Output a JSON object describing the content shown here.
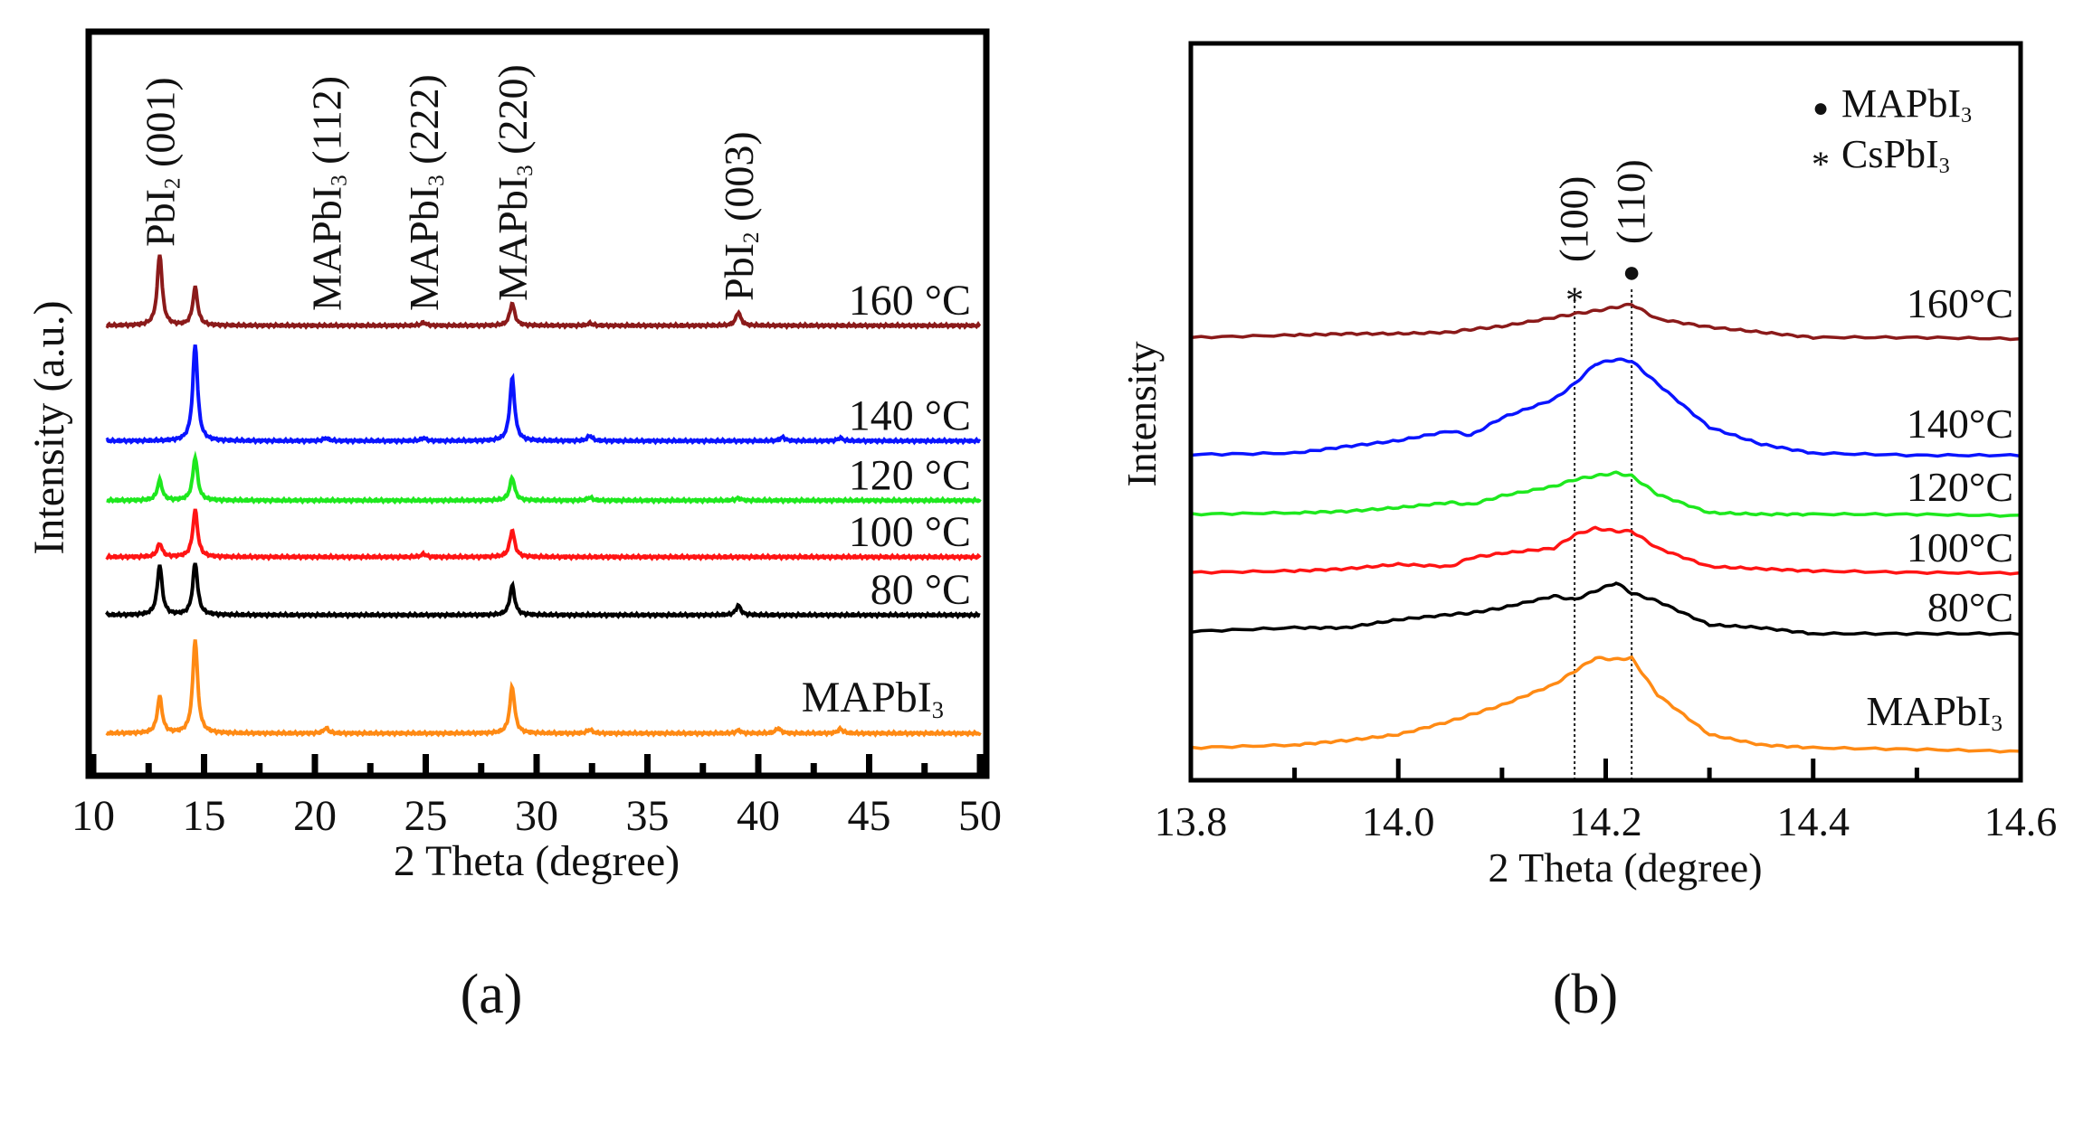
{
  "chart_data": [
    {
      "type": "line",
      "panel_label": "(a)",
      "xlabel": "2 Theta (degree)",
      "ylabel": "Intensity (a.u.)",
      "xlim": [
        10,
        50
      ],
      "ylim": [
        0,
        100
      ],
      "xticks": [
        "10",
        "15",
        "20",
        "25",
        "30",
        "35",
        "40",
        "45",
        "50"
      ],
      "peak_annotations": [
        {
          "pos": 13.0,
          "main": "PbI",
          "sub": "2",
          "rest": " (001)"
        },
        {
          "pos": 20.5,
          "main": "MAPbI",
          "sub": "3",
          "rest": " (112)"
        },
        {
          "pos": 24.9,
          "main": "MAPbI",
          "sub": "3",
          "rest": " (222)"
        },
        {
          "pos": 28.9,
          "main": "MAPbI",
          "sub": "3",
          "rest": " (220)"
        },
        {
          "pos": 39.1,
          "main": "PbI",
          "sub": "2",
          "rest": " (003)"
        }
      ],
      "series": [
        {
          "name": "160 °C",
          "color": "#8b1a1a",
          "baseline": 60.5,
          "peaks": [
            [
              13.0,
              9.6
            ],
            [
              14.6,
              5.1
            ],
            [
              28.9,
              3.0
            ],
            [
              39.1,
              1.8
            ],
            [
              24.9,
              0.4
            ],
            [
              32.4,
              0.3
            ]
          ]
        },
        {
          "name": "140 °C",
          "color": "#0a14ff",
          "baseline": 45.0,
          "peaks": [
            [
              14.6,
              13.0
            ],
            [
              28.9,
              8.5
            ],
            [
              32.4,
              0.7
            ],
            [
              20.5,
              0.4
            ],
            [
              24.9,
              0.4
            ],
            [
              41.1,
              0.5
            ],
            [
              43.7,
              0.4
            ]
          ]
        },
        {
          "name": "120 °C",
          "color": "#1ee81e",
          "baseline": 37.0,
          "peaks": [
            [
              13.0,
              2.7
            ],
            [
              14.6,
              5.8
            ],
            [
              28.9,
              3.1
            ],
            [
              32.4,
              0.4
            ],
            [
              39.1,
              0.3
            ]
          ]
        },
        {
          "name": "100 °C",
          "color": "#ff1414",
          "baseline": 29.4,
          "peaks": [
            [
              13.0,
              1.8
            ],
            [
              14.6,
              6.3
            ],
            [
              28.9,
              3.6
            ],
            [
              24.9,
              0.4
            ]
          ]
        },
        {
          "name": "80 °C",
          "color": "#000000",
          "baseline": 21.6,
          "peaks": [
            [
              13.0,
              6.7
            ],
            [
              14.6,
              7.0
            ],
            [
              28.9,
              4.0
            ],
            [
              39.1,
              1.3
            ]
          ]
        },
        {
          "name_main": "MAPbI",
          "name_sub": "3",
          "color": "#ff8a14",
          "baseline": 5.7,
          "peaks": [
            [
              13.0,
              4.9
            ],
            [
              14.6,
              12.6
            ],
            [
              28.9,
              6.3
            ],
            [
              20.5,
              0.7
            ],
            [
              32.4,
              0.5
            ],
            [
              39.1,
              0.4
            ],
            [
              40.9,
              0.7
            ],
            [
              43.7,
              0.6
            ]
          ]
        }
      ]
    },
    {
      "type": "line",
      "panel_label": "(b)",
      "xlabel": "2 Theta (degree)",
      "ylabel": "Intensity",
      "xlim": [
        13.8,
        14.6
      ],
      "ylim": [
        0,
        100
      ],
      "xticks": [
        "13.8",
        "14.0",
        "14.2",
        "14.4",
        "14.6"
      ],
      "legend": [
        {
          "symbol": "●",
          "main": "MAPbI",
          "sub": "3"
        },
        {
          "symbol": "*",
          "main": "CsPbI",
          "sub": "3"
        }
      ],
      "reference_lines": [
        {
          "pos": 14.17,
          "symbol": "*",
          "label": "(100)"
        },
        {
          "pos": 14.225,
          "symbol": "●",
          "label": "(110)"
        }
      ],
      "x": [
        13.8,
        13.9,
        13.95,
        14.0,
        14.05,
        14.07,
        14.1,
        14.15,
        14.17,
        14.19,
        14.21,
        14.225,
        14.25,
        14.3,
        14.35,
        14.4,
        14.5,
        14.6
      ],
      "series": [
        {
          "name": "160°C",
          "color": "#8b1a1a",
          "values": [
            60.1,
            60.4,
            60.6,
            60.6,
            60.8,
            61.2,
            61.6,
            62.8,
            63.3,
            63.7,
            64.2,
            64.6,
            62.6,
            61.5,
            60.8,
            60.1,
            60.1,
            59.9
          ]
        },
        {
          "name": "140°C",
          "color": "#0a14ff",
          "values": [
            44.2,
            44.4,
            45.3,
            46.1,
            47.4,
            46.8,
            49.2,
            51.7,
            53.8,
            56.5,
            57.1,
            56.9,
            53.8,
            47.9,
            45.6,
            44.4,
            44.1,
            44.1
          ]
        },
        {
          "name": "120°C",
          "color": "#1ee81e",
          "values": [
            36.1,
            36.3,
            36.5,
            37.0,
            37.7,
            37.4,
            38.6,
            39.9,
            40.8,
            41.3,
            41.7,
            41.3,
            38.8,
            36.3,
            36.1,
            36.1,
            36.1,
            35.9
          ]
        },
        {
          "name": "100°C",
          "color": "#ff1414",
          "values": [
            28.2,
            28.4,
            28.7,
            29.3,
            29.0,
            30.2,
            30.8,
            31.5,
            33.3,
            34.2,
            33.8,
            33.8,
            31.5,
            29.0,
            28.7,
            28.4,
            28.2,
            28.1
          ]
        },
        {
          "name": "80°C",
          "color": "#000000",
          "values": [
            20.2,
            20.7,
            20.7,
            21.8,
            22.5,
            22.7,
            23.4,
            25.0,
            24.5,
            25.7,
            26.8,
            25.4,
            24.3,
            21.1,
            20.7,
            19.9,
            19.9,
            19.9
          ]
        },
        {
          "name_main": "MAPbI",
          "name_sub": "3",
          "color": "#ff8a14",
          "values": [
            4.4,
            4.8,
            5.4,
            6.2,
            8.0,
            8.9,
            10.2,
            13.0,
            14.8,
            16.6,
            16.4,
            16.6,
            11.6,
            6.2,
            4.8,
            4.4,
            4.2,
            3.9
          ]
        }
      ]
    }
  ]
}
